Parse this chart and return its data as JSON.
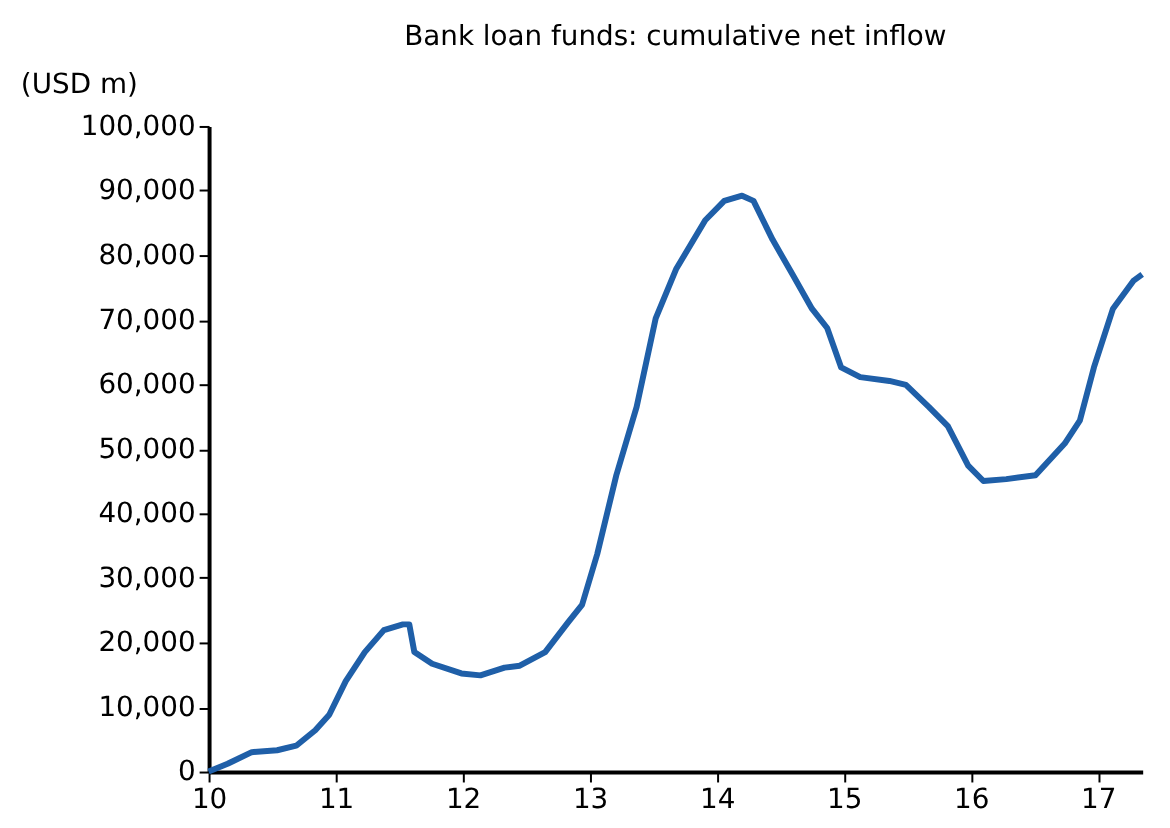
{
  "chart_data": {
    "type": "line",
    "title": "Bank loan funds: cumulative net inflow",
    "ylabel": "(USD m)",
    "x": [
      10.0,
      10.15,
      10.34,
      10.54,
      10.69,
      10.84,
      10.95,
      11.08,
      11.23,
      11.38,
      11.53,
      11.58,
      11.62,
      11.76,
      11.99,
      12.14,
      12.33,
      12.45,
      12.65,
      12.83,
      12.94,
      13.06,
      13.21,
      13.37,
      13.52,
      13.68,
      13.91,
      14.06,
      14.2,
      14.29,
      14.44,
      14.6,
      14.75,
      14.87,
      14.98,
      15.13,
      15.36,
      15.49,
      15.67,
      15.82,
      15.98,
      16.1,
      16.28,
      16.51,
      16.74,
      16.86,
      16.97,
      17.12,
      17.28,
      17.35
    ],
    "series": [
      {
        "color": "#1f5fa8",
        "values": [
          0,
          1200,
          3000,
          3300,
          4000,
          6400,
          8800,
          14000,
          18500,
          21900,
          22800,
          22800,
          18500,
          16700,
          15200,
          14900,
          16100,
          16400,
          18500,
          23100,
          25800,
          33700,
          45900,
          56500,
          70200,
          77800,
          85400,
          88400,
          89200,
          88400,
          82400,
          76900,
          71700,
          68700,
          62600,
          61100,
          60500,
          59900,
          56500,
          53500,
          47400,
          45000,
          45300,
          45900,
          50800,
          54400,
          62600,
          71700,
          76000,
          77000
        ]
      }
    ],
    "xlim": [
      10,
      17.35
    ],
    "xticks": [
      10,
      11,
      12,
      13,
      14,
      15,
      16,
      17
    ],
    "ylim": [
      0,
      100000
    ],
    "yticks": [
      0,
      {
        "value": 10000,
        "label": "10,000"
      },
      {
        "value": 20000,
        "label": "20,000"
      },
      {
        "value": 30000,
        "label": "30,000"
      },
      {
        "value": 40000,
        "label": "40,000"
      },
      {
        "value": 50000,
        "label": "50,000"
      },
      {
        "value": 60000,
        "label": "60,000"
      },
      {
        "value": 70000,
        "label": "70,000"
      },
      {
        "value": 80000,
        "label": "80,000"
      },
      {
        "value": 90000,
        "label": "90,000"
      },
      {
        "value": 100000,
        "label": "100,000"
      }
    ],
    "grid": false,
    "legend": false,
    "marker": "none",
    "line_style": "solid"
  }
}
